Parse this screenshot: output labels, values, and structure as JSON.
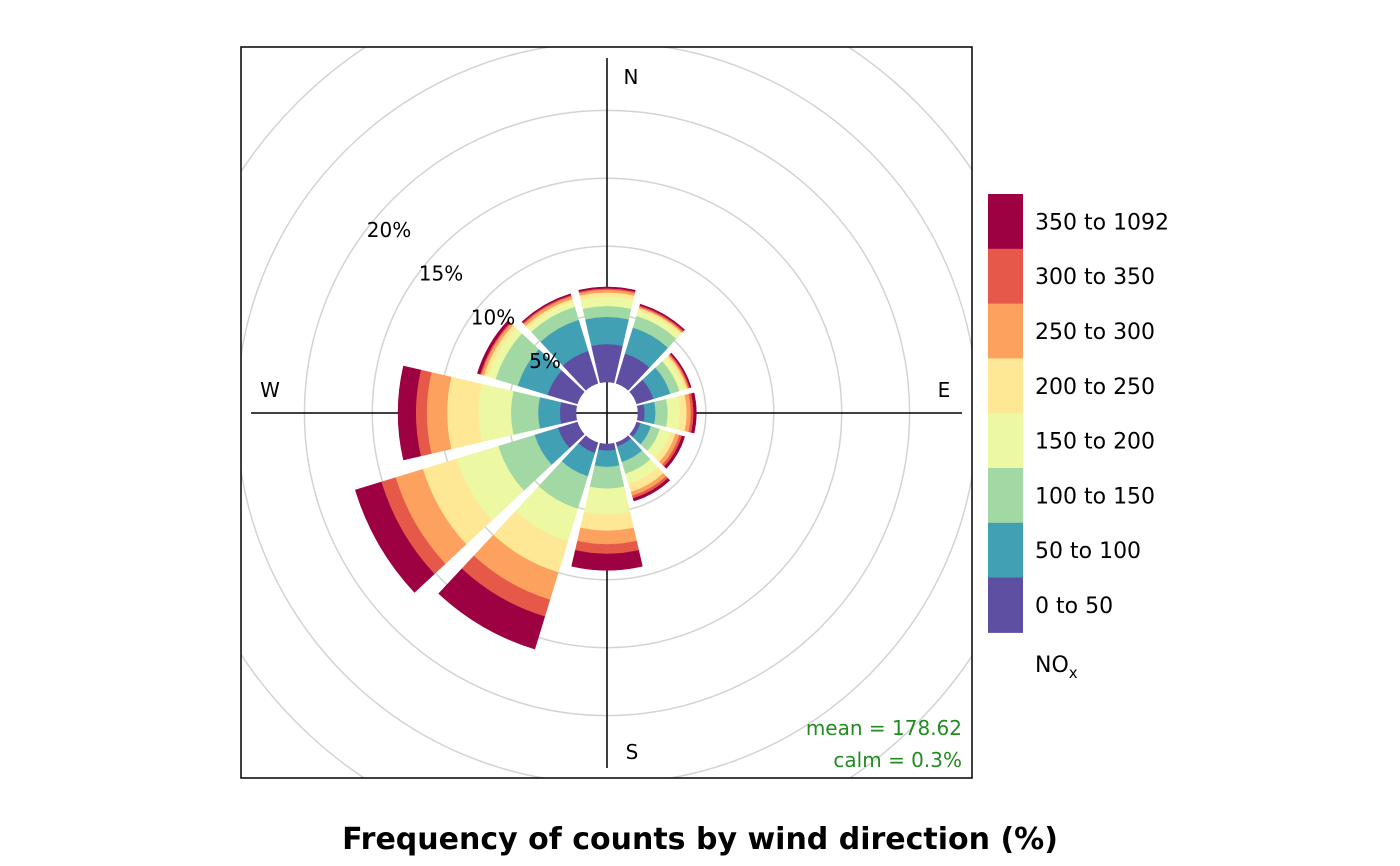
{
  "chart_data": {
    "type": "polar-stacked-bar",
    "title": "Frequency of counts by wind direction (%)",
    "radial_unit": "%",
    "radial_ticks": [
      5,
      10,
      15,
      20
    ],
    "radial_tick_labels": [
      "5%",
      "10%",
      "15%",
      "20%"
    ],
    "directions": [
      "N",
      "E",
      "S",
      "W"
    ],
    "sector_centers_deg": [
      0,
      30,
      60,
      90,
      120,
      150,
      180,
      210,
      240,
      270,
      300,
      330
    ],
    "legend": {
      "title": "NO",
      "title_subscript": "x",
      "bins": [
        "0 to 50",
        "50 to 100",
        "100 to 150",
        "150 to 200",
        "200 to 250",
        "250 to 300",
        "300 to 350",
        "350 to 1092"
      ],
      "colors": [
        "#5E4FA2",
        "#41A0B4",
        "#A1D8A3",
        "#EDF8A3",
        "#FEE896",
        "#FDA25E",
        "#E65948",
        "#9E0142"
      ]
    },
    "series": [
      {
        "name": "0 to 50",
        "values": [
          2.8,
          2.3,
          1.3,
          0.5,
          0.3,
          0.3,
          0.5,
          0.8,
          1.5,
          1.2,
          2.3,
          2.5
        ]
      },
      {
        "name": "50 to 100",
        "values": [
          2.0,
          2.0,
          1.3,
          0.8,
          0.8,
          1.2,
          1.2,
          1.8,
          1.8,
          1.6,
          2.3,
          2.4
        ]
      },
      {
        "name": "100 to 150",
        "values": [
          0.8,
          0.9,
          0.7,
          0.9,
          0.7,
          0.9,
          1.6,
          2.5,
          2.8,
          2.0,
          1.7,
          1.0
        ]
      },
      {
        "name": "150 to 200",
        "values": [
          0.7,
          0.4,
          0.4,
          0.9,
          0.8,
          0.8,
          1.9,
          2.5,
          3.2,
          2.4,
          0.6,
          0.4
        ]
      },
      {
        "name": "200 to 250",
        "values": [
          0.3,
          0.2,
          0.2,
          0.5,
          0.4,
          0.6,
          1.2,
          2.4,
          2.6,
          2.3,
          0.3,
          0.2
        ]
      },
      {
        "name": "250 to 300",
        "values": [
          0.2,
          0.1,
          0.1,
          0.3,
          0.3,
          0.3,
          1.0,
          2.1,
          2.1,
          1.5,
          0.2,
          0.2
        ]
      },
      {
        "name": "300 to 350",
        "values": [
          0.1,
          0.1,
          0.1,
          0.2,
          0.2,
          0.2,
          0.7,
          1.3,
          1.1,
          0.8,
          0.1,
          0.1
        ]
      },
      {
        "name": "350 to 1092",
        "values": [
          0.1,
          0.1,
          0.1,
          0.2,
          0.2,
          0.2,
          1.2,
          2.5,
          2.0,
          1.3,
          0.2,
          0.1
        ]
      }
    ],
    "annotations": {
      "mean": "mean = 178.62",
      "calm": "calm = 0.3%"
    },
    "grid": true,
    "legend_position": "right"
  }
}
